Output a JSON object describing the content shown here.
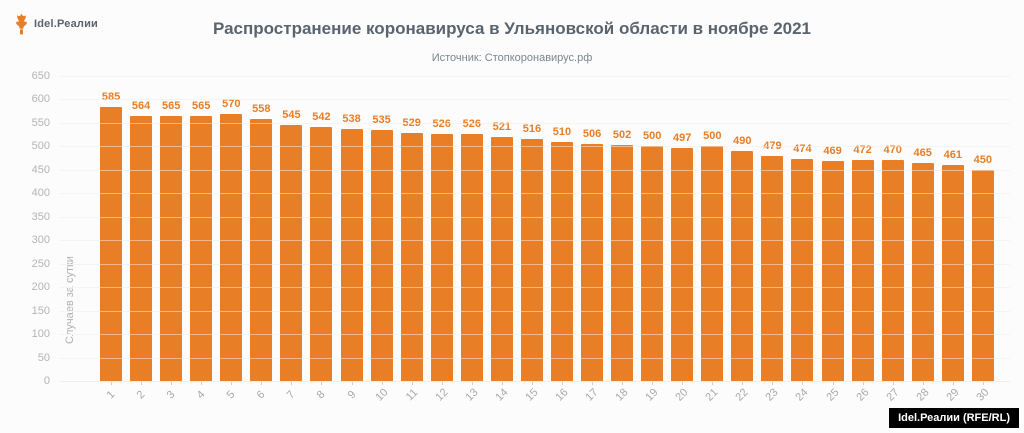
{
  "logo": {
    "icon": "torch-icon",
    "text": "Idel.Реалии"
  },
  "header": {
    "title": "Распространение коронавируса в Ульяновской области в ноябре 2021",
    "subtitle": "Источник: Стопкоронавирус.рф"
  },
  "footer": {
    "credit": "Idel.Реалии (RFE/RL)"
  },
  "colors": {
    "bar": "#E87E25",
    "title_text": "#5A646E",
    "axis_text": "#B4B4B4",
    "grid": "#ECECEC",
    "credit_bg": "#000000"
  },
  "chart_data": {
    "type": "bar",
    "title": "Распространение коронавируса в Ульяновской области в ноябре 2021",
    "source": "Стопкоронавирус.рф",
    "xlabel": "",
    "ylabel": "Случаев за сутки",
    "categories": [
      "1",
      "2",
      "3",
      "4",
      "5",
      "6",
      "7",
      "8",
      "9",
      "10",
      "11",
      "12",
      "13",
      "14",
      "15",
      "16",
      "17",
      "18",
      "19",
      "20",
      "21",
      "22",
      "23",
      "24",
      "25",
      "26",
      "27",
      "28",
      "29",
      "30"
    ],
    "values": [
      585,
      564,
      565,
      565,
      570,
      558,
      545,
      542,
      538,
      535,
      529,
      526,
      526,
      521,
      516,
      510,
      506,
      502,
      500,
      497,
      500,
      490,
      479,
      474,
      469,
      472,
      470,
      465,
      461,
      450
    ],
    "ylim": [
      0,
      650
    ],
    "ytick_step": 50,
    "grid": true,
    "legend": false,
    "value_labels": true,
    "bar_color": "#E87E25"
  }
}
